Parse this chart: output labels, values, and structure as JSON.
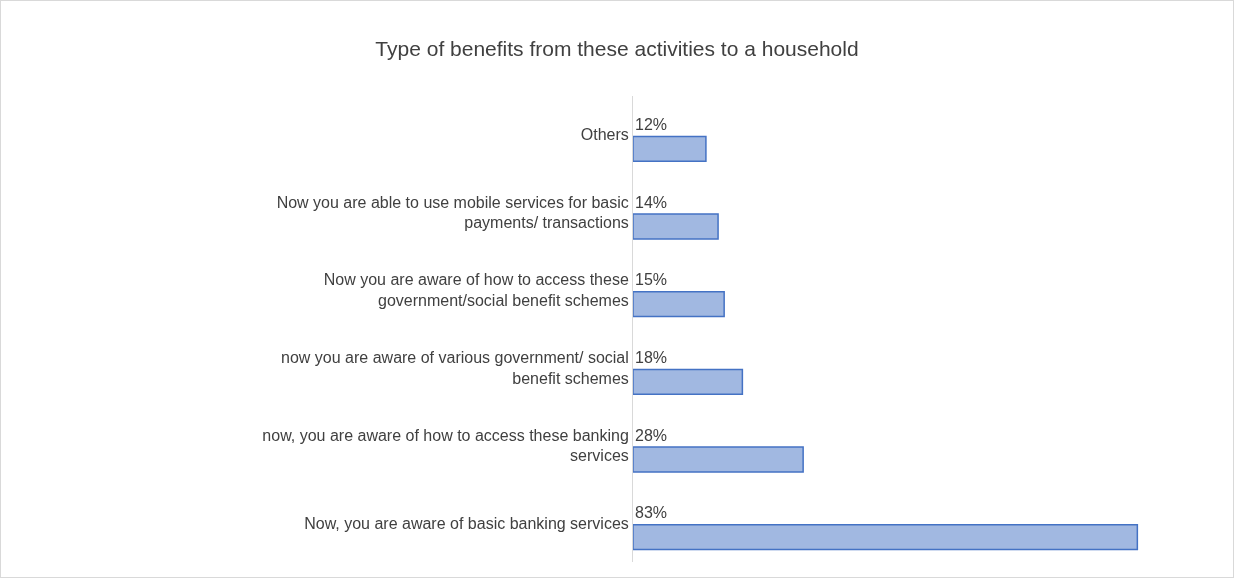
{
  "chart_data": {
    "type": "bar",
    "orientation": "horizontal",
    "title": "Type of benefits from these activities to a household",
    "categories": [
      "Others",
      "Now you are able to use mobile services for basic payments/ transactions",
      "Now you are aware of how to access these government/social benefit schemes",
      "now you are aware of various government/ social benefit schemes",
      "now, you are aware of how to access these banking services",
      "Now, you are aware of basic banking services"
    ],
    "values": [
      12,
      14,
      15,
      18,
      28,
      83
    ],
    "value_labels": [
      "12%",
      "14%",
      "15%",
      "18%",
      "28%",
      "83%"
    ],
    "color": "#4472c4"
  }
}
